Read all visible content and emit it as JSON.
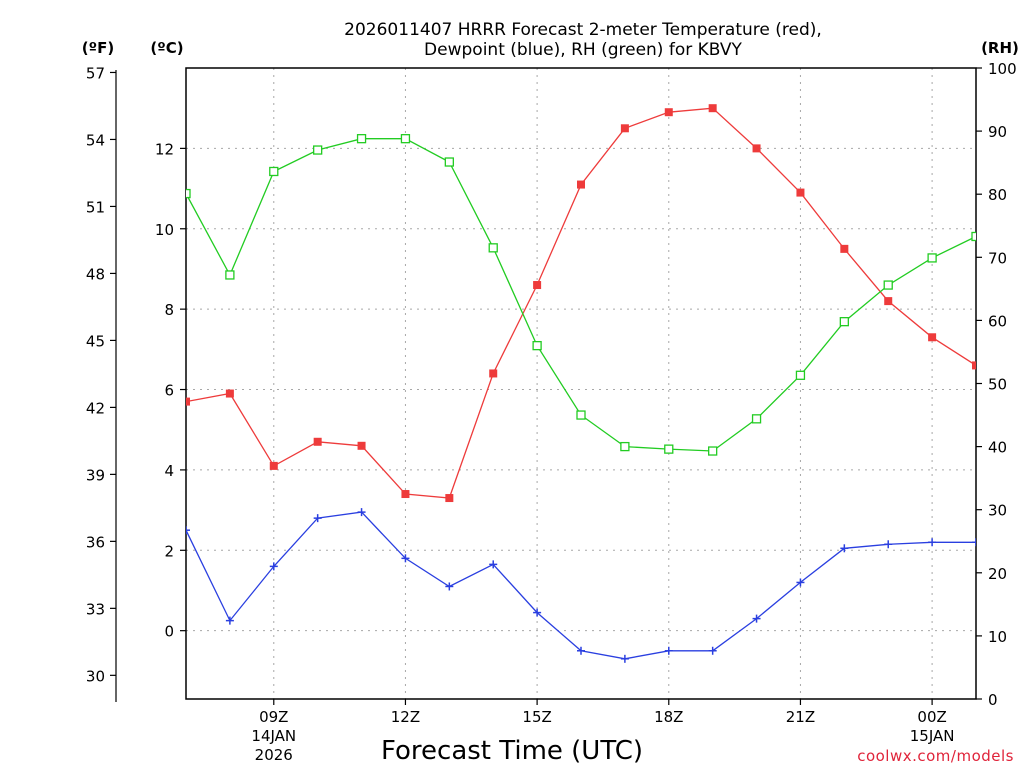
{
  "chart_data": {
    "type": "line",
    "title": "2026011407 HRRR Forecast 2-meter Temperature (red),",
    "title_line2": "Dewpoint (blue), RH (green) for KBVY",
    "xlabel": "Forecast Time (UTC)",
    "credit": "coolwx.com/models",
    "hours": [
      7,
      8,
      9,
      10,
      11,
      12,
      13,
      14,
      15,
      16,
      17,
      18,
      19,
      20,
      21,
      22,
      23,
      24,
      25
    ],
    "xlim": [
      7,
      25
    ],
    "x_ticks": [
      {
        "hour": 9,
        "label": "09Z",
        "date": "14JAN",
        "year": "2026"
      },
      {
        "hour": 12,
        "label": "12Z"
      },
      {
        "hour": 15,
        "label": "15Z"
      },
      {
        "hour": 18,
        "label": "18Z"
      },
      {
        "hour": 21,
        "label": "21Z"
      },
      {
        "hour": 24,
        "label": "00Z",
        "date": "15JAN"
      }
    ],
    "left_celsius_axis": {
      "unit_label": "(ºC)",
      "ylim": [
        -1.7,
        14
      ],
      "ticks": [
        0,
        2,
        4,
        6,
        8,
        10,
        12
      ]
    },
    "left_fahrenheit_axis": {
      "unit_label": "(ºF)",
      "ticks": [
        30,
        33,
        36,
        39,
        42,
        45,
        48,
        51,
        54,
        57
      ]
    },
    "right_rh_axis": {
      "unit_label": "(RH)",
      "ylim": [
        0,
        100
      ],
      "ticks": [
        0,
        10,
        20,
        30,
        40,
        50,
        60,
        70,
        80,
        90,
        100
      ]
    },
    "series": [
      {
        "name": "Temperature",
        "unit": "C",
        "axis": "celsius",
        "color": "#ee3b3b",
        "marker": "filled-square",
        "values": [
          5.7,
          5.9,
          4.1,
          4.7,
          4.6,
          3.4,
          3.3,
          6.4,
          8.6,
          11.1,
          12.5,
          12.9,
          13.0,
          12.0,
          10.9,
          9.5,
          8.2,
          7.3,
          6.6
        ]
      },
      {
        "name": "Dewpoint",
        "unit": "C",
        "axis": "celsius",
        "color": "#2a3fe0",
        "marker": "plus",
        "values": [
          2.5,
          0.25,
          1.6,
          2.8,
          2.95,
          1.8,
          1.1,
          1.65,
          0.45,
          -0.5,
          -0.7,
          -0.5,
          -0.5,
          0.3,
          1.2,
          2.05,
          2.15,
          2.2,
          2.2
        ]
      },
      {
        "name": "RH",
        "unit": "%",
        "axis": "rh",
        "color": "#22cc22",
        "marker": "open-square",
        "values": [
          80.1,
          67.2,
          83.6,
          87.0,
          88.8,
          88.8,
          85.1,
          71.5,
          56.0,
          45.0,
          40.0,
          39.6,
          39.3,
          44.4,
          51.3,
          59.8,
          65.6,
          69.9,
          73.3
        ]
      }
    ]
  }
}
